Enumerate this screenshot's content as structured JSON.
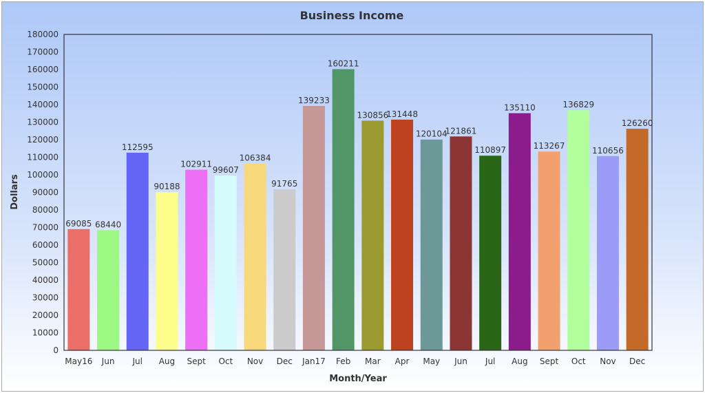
{
  "chart_data": {
    "type": "bar",
    "title": "Business Income",
    "xlabel": "Month/Year",
    "ylabel": "Dollars",
    "ylim": [
      0,
      180000
    ],
    "ytick_step": 10000,
    "grid": false,
    "categories": [
      "May16",
      "Jun",
      "Jul",
      "Aug",
      "Sept",
      "Oct",
      "Nov",
      "Dec",
      "Jan17",
      "Feb",
      "Mar",
      "Apr",
      "May",
      "Jun",
      "Jul",
      "Aug",
      "Sept",
      "Oct",
      "Nov",
      "Dec"
    ],
    "values": [
      69085,
      68440,
      112595,
      90188,
      102911,
      99607,
      106384,
      91765,
      139233,
      160211,
      130856,
      131448,
      120104,
      121861,
      110897,
      135110,
      113267,
      136829,
      110656,
      126260
    ],
    "colors": [
      "#ec6e68",
      "#9cf883",
      "#6464f5",
      "#fdfd8c",
      "#ed6ff5",
      "#d5fbfd",
      "#f7d97b",
      "#cbcbcb",
      "#c69797",
      "#529668",
      "#9a9a30",
      "#bd421f",
      "#6c9898",
      "#8c3535",
      "#2a6618",
      "#8c1c8c",
      "#f2a06e",
      "#b2fd9c",
      "#9c9cf8",
      "#c36a28"
    ]
  }
}
